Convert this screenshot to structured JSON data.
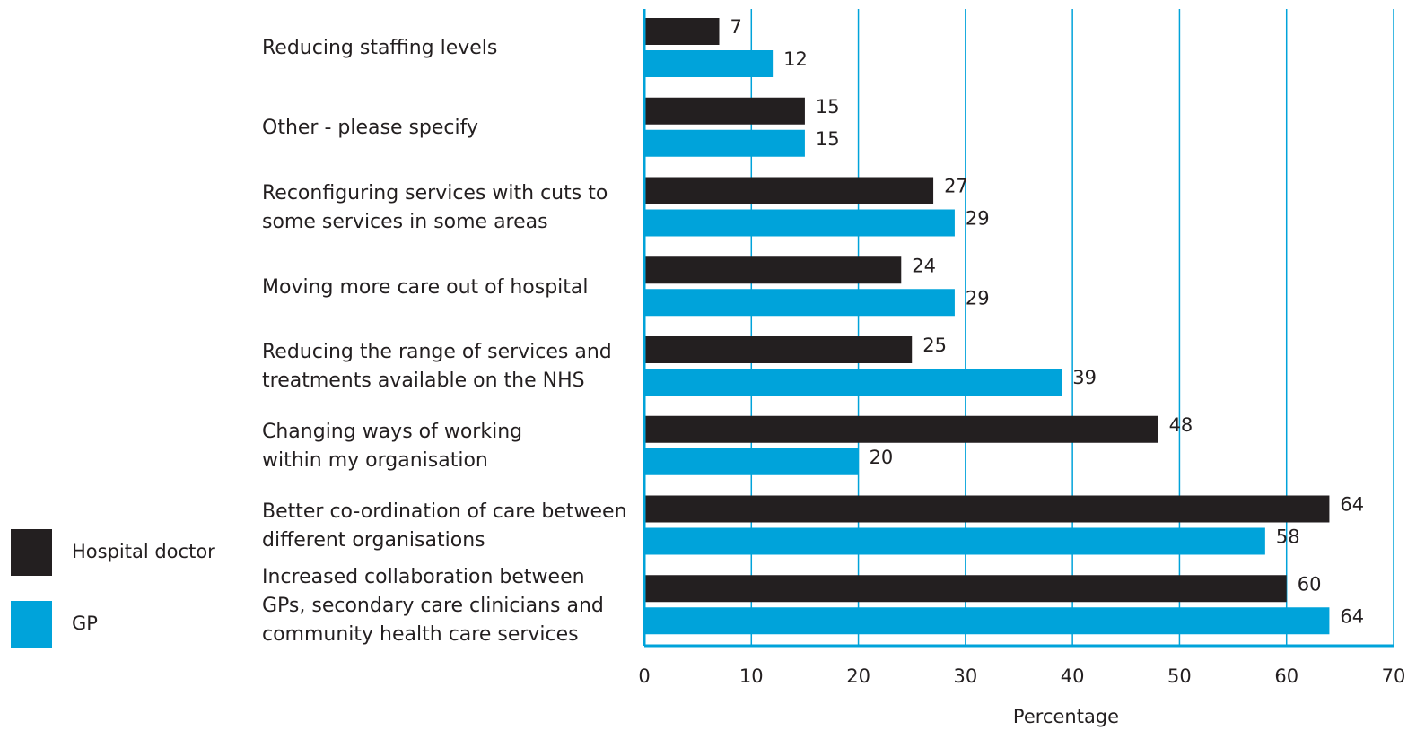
{
  "chart_data": {
    "type": "hbar",
    "categories": [
      "Reducing staffing levels",
      "Other - please specify",
      "Reconfiguring services with cuts to\nsome services in some areas",
      "Moving more care out of hospital",
      "Reducing the range of services and\ntreatments available on the NHS",
      "Changing ways of working\nwithin my organisation",
      "Better co-ordination of care between\ndifferent organisations",
      "Increased collaboration between\nGPs, secondary care clinicians and\ncommunity health care services"
    ],
    "series": [
      {
        "name": "Hospital doctor",
        "color": "#231f20",
        "values": [
          7,
          15,
          27,
          24,
          25,
          48,
          64,
          60
        ]
      },
      {
        "name": "GP",
        "color": "#00a3da",
        "values": [
          12,
          15,
          29,
          29,
          39,
          20,
          58,
          64
        ]
      }
    ],
    "xlabel": "Percentage",
    "xlim": [
      0,
      70
    ],
    "xticks": [
      0,
      10,
      20,
      30,
      40,
      50,
      60,
      70
    ],
    "grid": true,
    "legend": "bottom-left",
    "grid_color": "#00a3da"
  }
}
